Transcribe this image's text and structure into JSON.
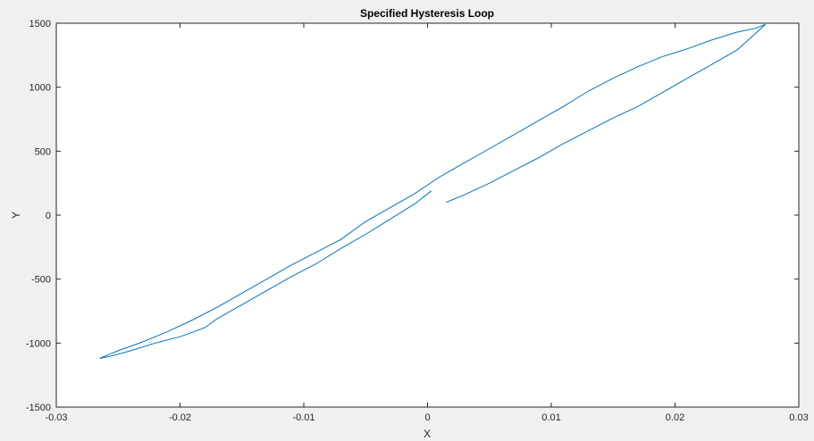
{
  "chart_data": {
    "type": "line",
    "title": "Specified Hysteresis Loop",
    "xlabel": "X",
    "ylabel": "Y",
    "xlim": [
      -0.03,
      0.03
    ],
    "ylim": [
      -1500,
      1500
    ],
    "xticks": [
      -0.03,
      -0.02,
      -0.01,
      0,
      0.01,
      0.02,
      0.03
    ],
    "xtick_labels": [
      "-0.03",
      "-0.02",
      "-0.01",
      "0",
      "0.01",
      "0.02",
      "0.03"
    ],
    "yticks": [
      -1500,
      -1000,
      -500,
      0,
      500,
      1000,
      1500
    ],
    "ytick_labels": [
      "-1500",
      "-1000",
      "-500",
      "0",
      "500",
      "1000",
      "1500"
    ],
    "grid": false,
    "line_color": "#0072bd",
    "series": [
      {
        "x": [
          0.0003,
          -0.001,
          -0.003,
          -0.005,
          -0.007,
          -0.009,
          -0.011,
          -0.013,
          -0.015,
          -0.017,
          -0.018,
          -0.02,
          -0.022,
          -0.024,
          -0.0255,
          -0.0265,
          -0.025,
          -0.023,
          -0.021,
          -0.019,
          -0.017,
          -0.015,
          -0.013,
          -0.011,
          -0.009,
          -0.007,
          -0.005,
          -0.003,
          -0.001,
          0.001,
          0.003,
          0.005,
          0.007,
          0.009,
          0.011,
          0.013,
          0.015,
          0.017,
          0.019,
          0.021,
          0.023,
          0.025,
          0.0265,
          0.0273
        ],
        "y": [
          190,
          90,
          -30,
          -150,
          -260,
          -380,
          -480,
          -590,
          -700,
          -810,
          -880,
          -950,
          -1000,
          -1060,
          -1100,
          -1120,
          -1060,
          -990,
          -910,
          -820,
          -720,
          -610,
          -500,
          -390,
          -290,
          -190,
          -50,
          60,
          170,
          300,
          410,
          520,
          630,
          740,
          850,
          970,
          1070,
          1160,
          1240,
          1300,
          1370,
          1430,
          1460,
          1490
        ]
      },
      {
        "x": [
          0.0273,
          0.0265,
          0.025,
          0.023,
          0.021,
          0.019,
          0.017,
          0.015,
          0.013,
          0.011,
          0.009,
          0.007,
          0.005,
          0.003,
          0.0015
        ],
        "y": [
          1490,
          1420,
          1290,
          1180,
          1070,
          960,
          850,
          760,
          660,
          560,
          450,
          350,
          250,
          160,
          100
        ]
      }
    ]
  }
}
